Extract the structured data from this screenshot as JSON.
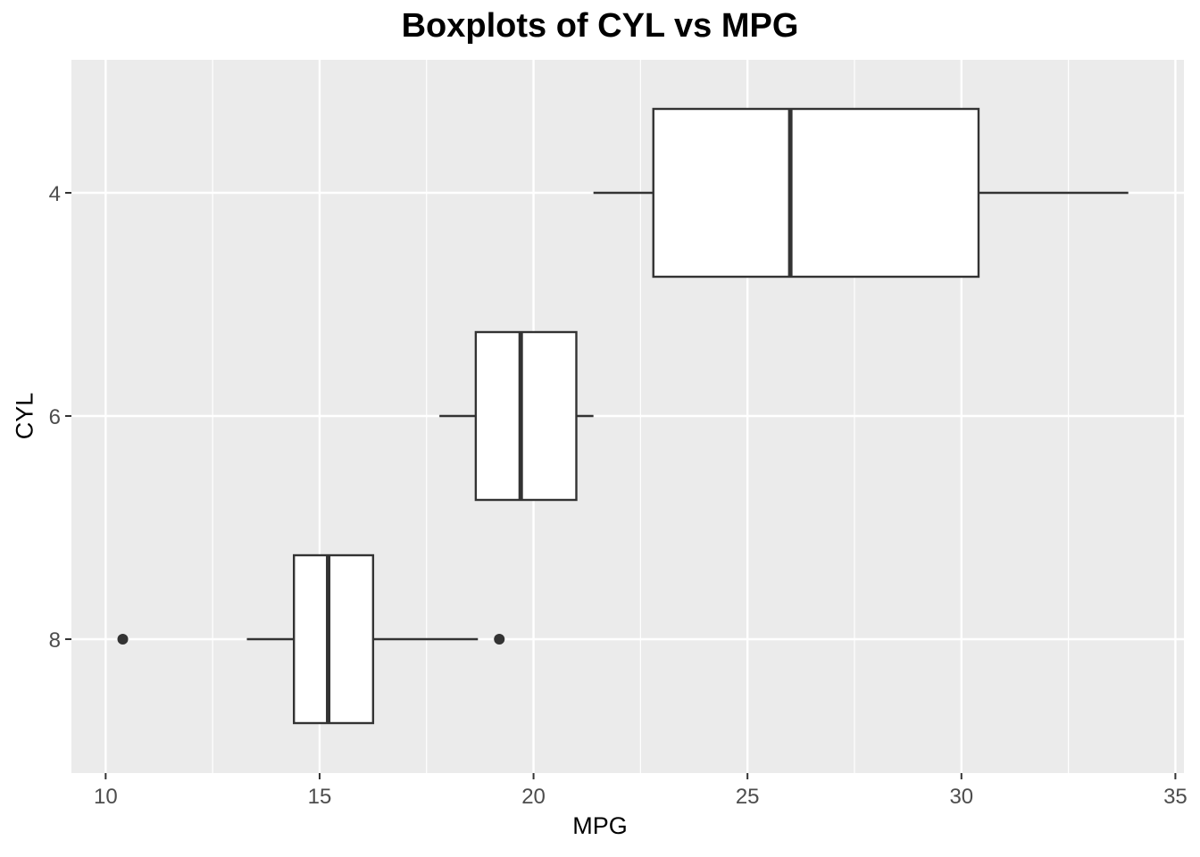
{
  "chart_data": {
    "type": "boxplot",
    "title": "Boxplots of CYL vs MPG",
    "xlabel": "MPG",
    "ylabel": "CYL",
    "xlim": [
      9.2,
      35.2
    ],
    "x_ticks": [
      10,
      15,
      20,
      25,
      30,
      35
    ],
    "x_tick_labels": [
      "10",
      "15",
      "20",
      "25",
      "30",
      "35"
    ],
    "categories": [
      "4",
      "6",
      "8"
    ],
    "orientation": "horizontal",
    "grid": true,
    "colors": {
      "panel": "#ebebeb",
      "grid": "#ffffff",
      "box_fill": "#ffffff",
      "box_line": "#333333",
      "tick_text": "#4d4d4d"
    },
    "boxes": [
      {
        "category": "4",
        "whisker_low": 21.4,
        "q1": 22.8,
        "median": 26.0,
        "q3": 30.4,
        "whisker_high": 33.9,
        "outliers": []
      },
      {
        "category": "6",
        "whisker_low": 17.8,
        "q1": 18.65,
        "median": 19.7,
        "q3": 21.0,
        "whisker_high": 21.4,
        "outliers": []
      },
      {
        "category": "8",
        "whisker_low": 13.3,
        "q1": 14.4,
        "median": 15.2,
        "q3": 16.25,
        "whisker_high": 18.7,
        "outliers": [
          10.4,
          19.2
        ]
      }
    ]
  }
}
